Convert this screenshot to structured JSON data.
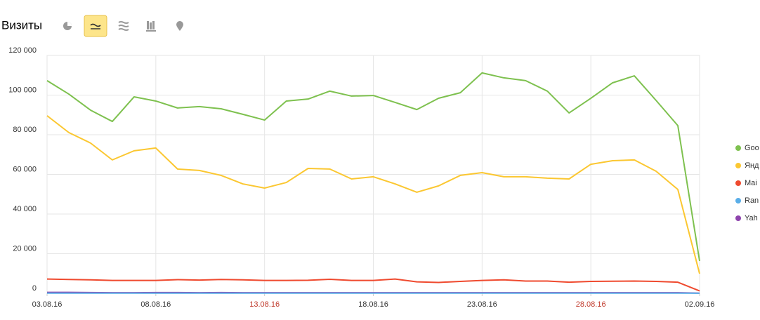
{
  "header": {
    "title": "Визиты"
  },
  "chart_data": {
    "type": "line",
    "categories": [
      "03.08.16",
      null,
      null,
      null,
      null,
      "08.08.16",
      null,
      null,
      null,
      null,
      "13.08.16",
      null,
      null,
      null,
      null,
      "18.08.16",
      null,
      null,
      null,
      null,
      "23.08.16",
      null,
      null,
      null,
      null,
      "28.08.16",
      null,
      null,
      null,
      null,
      "02.09.16"
    ],
    "xtick_colors": [
      "#333333",
      null,
      null,
      null,
      null,
      "#333333",
      null,
      null,
      null,
      null,
      "#c0392b",
      null,
      null,
      null,
      null,
      "#333333",
      null,
      null,
      null,
      null,
      "#333333",
      null,
      null,
      null,
      null,
      "#c0392b",
      null,
      null,
      null,
      null,
      "#333333"
    ],
    "ylim": [
      0,
      120000
    ],
    "yticks": [
      0,
      {
        "value": 20000,
        "label": "20 000"
      },
      {
        "value": 40000,
        "label": "40 000"
      },
      {
        "value": 60000,
        "label": "60 000"
      },
      {
        "value": 80000,
        "label": "80 000"
      },
      {
        "value": 100000,
        "label": "100 000"
      },
      {
        "value": 120000,
        "label": "120 000"
      }
    ],
    "grid": true,
    "legend": "right",
    "series": [
      {
        "name": "Goo",
        "color": "#7ec14f",
        "values": [
          107300,
          100500,
          92400,
          86700,
          99100,
          97000,
          93500,
          94200,
          93100,
          90300,
          87400,
          97000,
          98000,
          102000,
          99500,
          99800,
          96300,
          92700,
          98400,
          101200,
          111200,
          108700,
          107300,
          102000,
          91000,
          98400,
          106200,
          109700,
          97300,
          84600,
          16300
        ]
      },
      {
        "name": "Янд",
        "color": "#fbc731",
        "values": [
          89600,
          81100,
          75800,
          67300,
          71900,
          73300,
          62700,
          62000,
          59500,
          55200,
          53100,
          55900,
          63000,
          62700,
          57700,
          58800,
          55200,
          51000,
          54200,
          59500,
          60900,
          58800,
          58800,
          58100,
          57700,
          65100,
          66900,
          67300,
          61600,
          52400,
          9900
        ]
      },
      {
        "name": "Mai",
        "color": "#ef4a2f",
        "values": [
          7200,
          7000,
          6800,
          6500,
          6500,
          6500,
          6900,
          6700,
          7000,
          6800,
          6500,
          6500,
          6600,
          7100,
          6500,
          6500,
          7200,
          5800,
          5500,
          6000,
          6500,
          6800,
          6200,
          6200,
          5600,
          6000,
          6100,
          6200,
          6000,
          5600,
          1200
        ]
      },
      {
        "name": "Ran",
        "color": "#5aaee8",
        "values": [
          100,
          100,
          100,
          100,
          100,
          100,
          100,
          100,
          100,
          100,
          100,
          100,
          100,
          100,
          100,
          100,
          100,
          100,
          100,
          100,
          100,
          100,
          100,
          100,
          100,
          100,
          100,
          100,
          100,
          100,
          50
        ]
      },
      {
        "name": "Yah",
        "color": "#8e44ad",
        "values": [
          500,
          500,
          400,
          300,
          300,
          400,
          400,
          300,
          400,
          300,
          300,
          300,
          300,
          300,
          300,
          300,
          300,
          300,
          300,
          300,
          300,
          300,
          300,
          300,
          300,
          300,
          300,
          300,
          300,
          300,
          100
        ]
      }
    ]
  }
}
